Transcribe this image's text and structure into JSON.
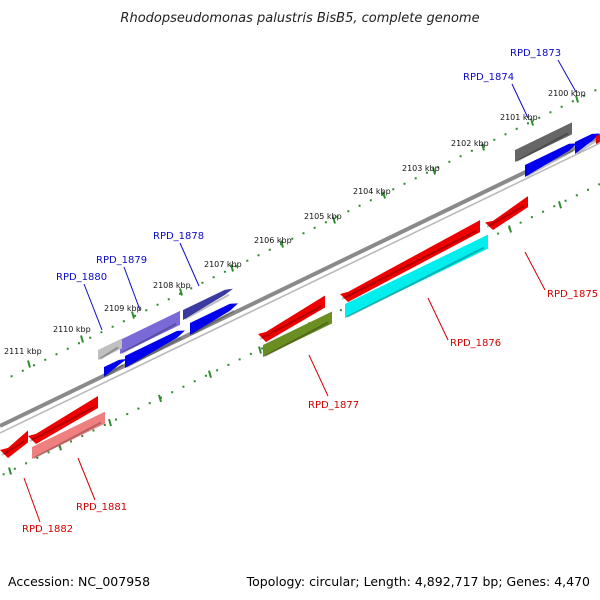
{
  "title": "Rhodopseudomonas palustris BisB5, complete genome",
  "footer": {
    "accession": "Accession: NC_007958",
    "stats": "Topology: circular; Length: 4,892,717 bp; Genes: 4,470"
  },
  "colors": {
    "background": "#ffffff",
    "backbone": "#8a8a8a",
    "tick": "#2e8b2e",
    "label_top": "#0a0ac8",
    "label_bottom": "#d40000"
  },
  "ticks": [
    {
      "label": "2100 kbp"
    },
    {
      "label": "2101 kbp"
    },
    {
      "label": "2102 kbp"
    },
    {
      "label": "2103 kbp"
    },
    {
      "label": "2104 kbp"
    },
    {
      "label": "2105 kbp"
    },
    {
      "label": "2106 kbp"
    },
    {
      "label": "2107 kbp"
    },
    {
      "label": "2108 kbp"
    },
    {
      "label": "2109 kbp"
    },
    {
      "label": "2110 kbp"
    },
    {
      "label": "2111 kbp"
    }
  ],
  "genes_top": [
    {
      "name": "RPD_1873",
      "color": "#0000ee",
      "strand": "forward"
    },
    {
      "name": "RPD_1874",
      "color": "#666666",
      "strand": "forward"
    },
    {
      "name": "RPD_1878",
      "color": "#3a3aa0",
      "strand": "forward"
    },
    {
      "name": "RPD_1879",
      "color": "#7a6ad8",
      "strand": "forward"
    },
    {
      "name": "RPD_1880",
      "color": "#c0c0c0",
      "strand": "forward"
    }
  ],
  "genes_bottom": [
    {
      "name": "RPD_1875",
      "color": "#ee0000",
      "strand": "reverse"
    },
    {
      "name": "RPD_1876",
      "color": "#00eeee",
      "strand": "reverse"
    },
    {
      "name": "RPD_1877",
      "color": "#6b8e23",
      "strand": "reverse"
    },
    {
      "name": "RPD_1881",
      "color": "#f08080",
      "strand": "reverse"
    },
    {
      "name": "RPD_1882",
      "color": "#ee0000",
      "strand": "reverse"
    }
  ],
  "cds_unlabeled": [
    {
      "color": "#0000ee"
    },
    {
      "color": "#0000ee"
    },
    {
      "color": "#0000ee"
    },
    {
      "color": "#0000ee"
    },
    {
      "color": "#0000ee"
    },
    {
      "color": "#ee0000"
    },
    {
      "color": "#ee0000"
    },
    {
      "color": "#ee0000"
    },
    {
      "color": "#ee0000"
    }
  ]
}
